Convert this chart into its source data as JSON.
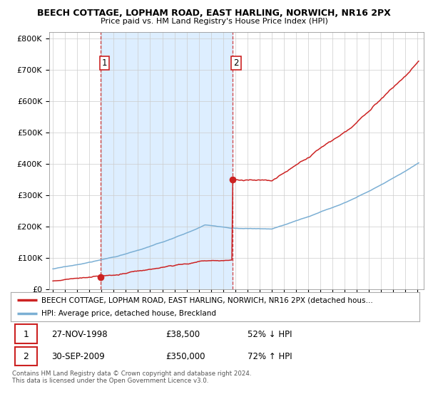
{
  "title1": "BEECH COTTAGE, LOPHAM ROAD, EAST HARLING, NORWICH, NR16 2PX",
  "title2": "Price paid vs. HM Land Registry's House Price Index (HPI)",
  "hpi_color": "#7bafd4",
  "price_color": "#cc2222",
  "shade_color": "#ddeeff",
  "sale1_x": 1998.92,
  "sale1_y": 38500,
  "sale1_label": "1",
  "sale1_date": "27-NOV-1998",
  "sale1_price": "£38,500",
  "sale1_hpi": "52% ↓ HPI",
  "sale2_x": 2009.75,
  "sale2_y": 350000,
  "sale2_label": "2",
  "sale2_date": "30-SEP-2009",
  "sale2_price": "£350,000",
  "sale2_hpi": "72% ↑ HPI",
  "legend_line1": "BEECH COTTAGE, LOPHAM ROAD, EAST HARLING, NORWICH, NR16 2PX (detached hous…",
  "legend_line2": "HPI: Average price, detached house, Breckland",
  "footnote": "Contains HM Land Registry data © Crown copyright and database right 2024.\nThis data is licensed under the Open Government Licence v3.0.",
  "yticks": [
    0,
    100000,
    200000,
    300000,
    400000,
    500000,
    600000,
    700000,
    800000
  ],
  "ytick_labels": [
    "£0",
    "£100K",
    "£200K",
    "£300K",
    "£400K",
    "£500K",
    "£600K",
    "£700K",
    "£800K"
  ],
  "xtick_years": [
    1995,
    1996,
    1997,
    1998,
    1999,
    2000,
    2001,
    2002,
    2003,
    2004,
    2005,
    2006,
    2007,
    2008,
    2009,
    2010,
    2011,
    2012,
    2013,
    2014,
    2015,
    2016,
    2017,
    2018,
    2019,
    2020,
    2021,
    2022,
    2023,
    2024,
    2025
  ],
  "xlim_start": 1994.7,
  "xlim_end": 2025.5,
  "ylim_max": 820000
}
